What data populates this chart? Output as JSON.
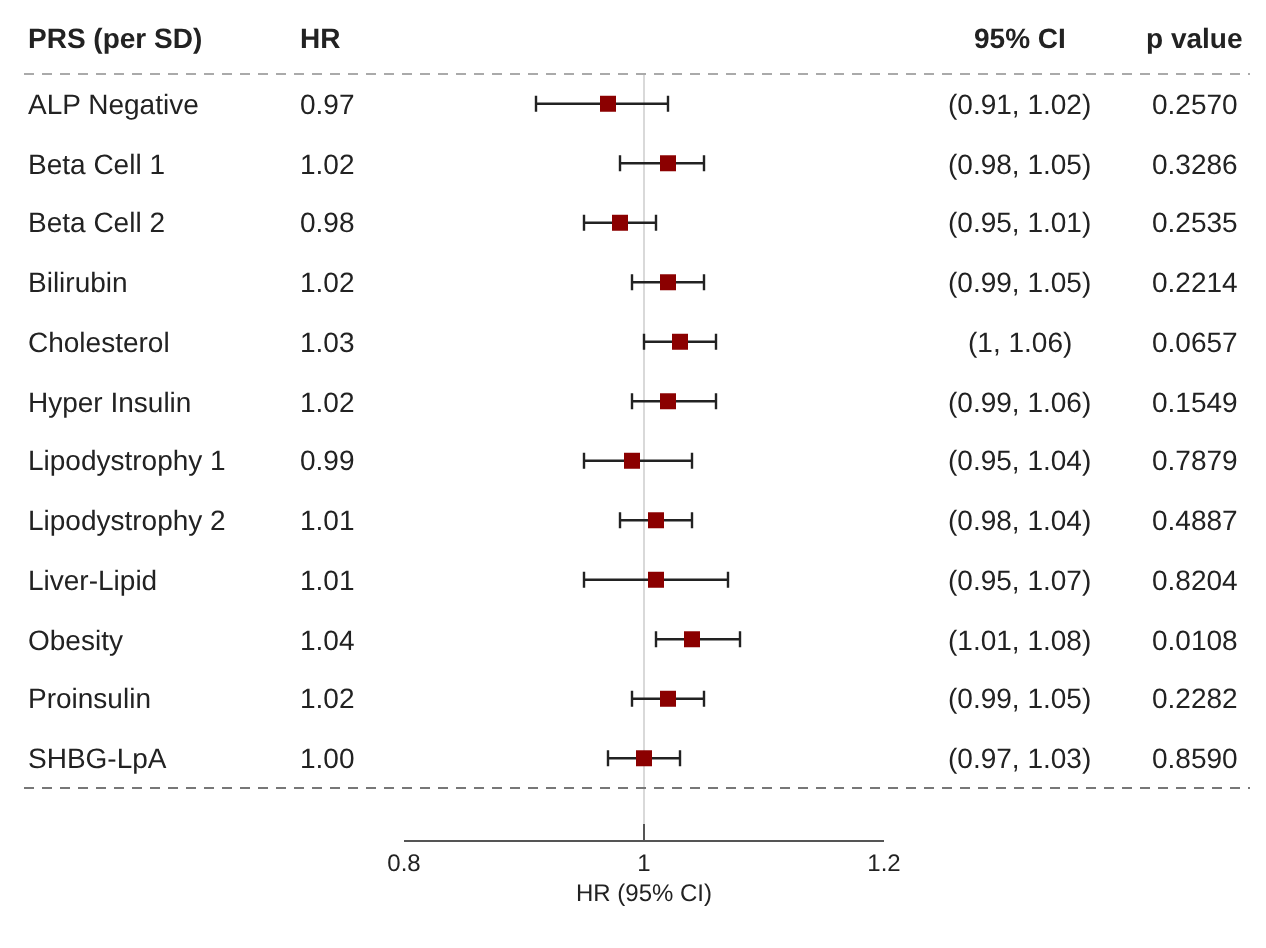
{
  "chart_data": {
    "type": "scatter",
    "ylabel": "PRS (per SD)",
    "xlabel": "HR (95% CI)",
    "categories": [
      "ALP Negative",
      "Beta Cell 1",
      "Beta Cell 2",
      "Bilirubin",
      "Cholesterol",
      "Hyper Insulin",
      "Lipodystrophy 1",
      "Lipodystrophy 2",
      "Liver-Lipid",
      "Obesity",
      "Proinsulin",
      "SHBG-LpA"
    ],
    "values": [
      0.97,
      1.02,
      0.98,
      1.02,
      1.03,
      1.02,
      0.99,
      1.01,
      1.01,
      1.04,
      1.02,
      1.0
    ],
    "value_labels": [
      "0.97",
      "1.02",
      "0.98",
      "1.02",
      "1.03",
      "1.02",
      "0.99",
      "1.01",
      "1.01",
      "1.04",
      "1.02",
      "1.00"
    ],
    "errors": [
      [
        0.91,
        1.02
      ],
      [
        0.98,
        1.05
      ],
      [
        0.95,
        1.01
      ],
      [
        0.99,
        1.05
      ],
      [
        1,
        1.06
      ],
      [
        0.99,
        1.06
      ],
      [
        0.95,
        1.04
      ],
      [
        0.98,
        1.04
      ],
      [
        0.95,
        1.07
      ],
      [
        1.01,
        1.08
      ],
      [
        0.99,
        1.05
      ],
      [
        0.97,
        1.03
      ]
    ],
    "color": "#8b0000",
    "marker": "square",
    "orientation": "horizontal",
    "xlim": [
      0.8,
      1.2
    ],
    "xticks": [
      0.8,
      1,
      1.2
    ],
    "tick_labels": "x",
    "grid": false,
    "ref_lines": [
      {
        "axis": "x",
        "value": 1,
        "color": "#d9d9d9"
      }
    ],
    "annotations": [
      "HR",
      "95% CI",
      "p value",
      "(0.91, 1.02)",
      "(0.98, 1.05)",
      "(0.95, 1.01)",
      "(0.99, 1.05)",
      "(1, 1.06)",
      "(0.99, 1.06)",
      "(0.95, 1.04)",
      "(0.98, 1.04)",
      "(0.95, 1.07)",
      "(1.01, 1.08)",
      "(0.99, 1.05)",
      "(0.97, 1.03)",
      "0.2570",
      "0.3286",
      "0.2535",
      "0.2214",
      "0.0657",
      "0.1549",
      "0.7879",
      "0.4887",
      "0.8204",
      "0.0108",
      "0.2282",
      "0.8590"
    ]
  }
}
